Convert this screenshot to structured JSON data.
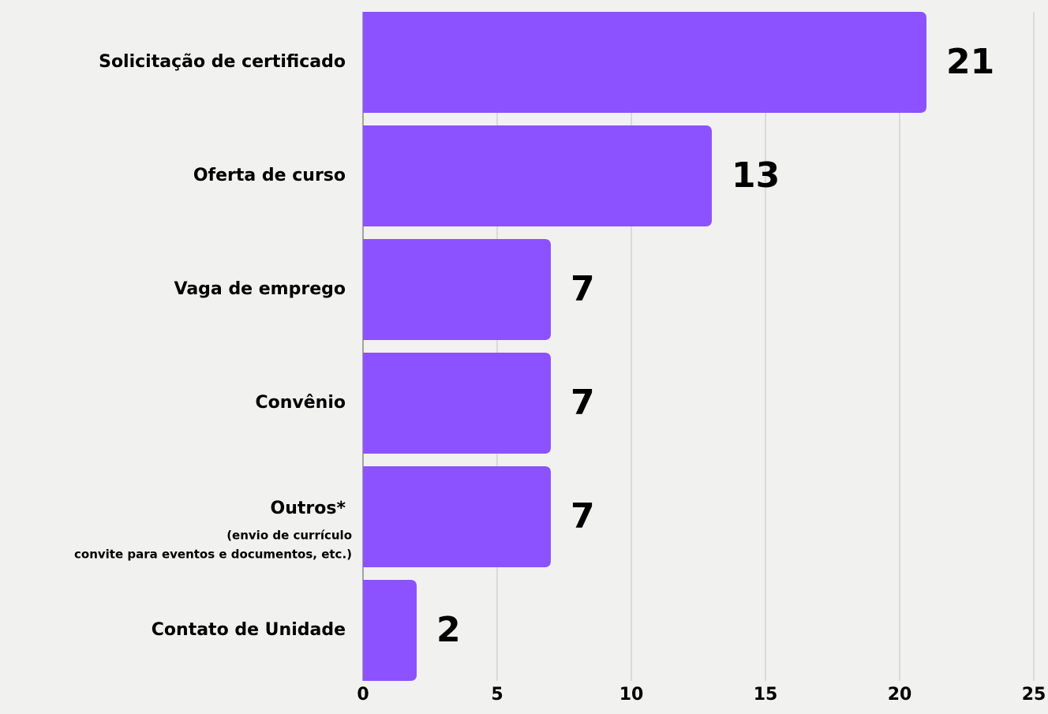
{
  "chart_data": {
    "type": "barh",
    "categories": [
      "Solicitação de certificado",
      "Oferta de curso",
      "Vaga de emprego",
      "Convênio",
      "Outros*",
      "Contato de Unidade"
    ],
    "category_notes": [
      null,
      null,
      null,
      null,
      [
        "(envio de currículo",
        "convite para eventos e documentos, etc.)"
      ],
      null
    ],
    "values": [
      21,
      13,
      7,
      7,
      7,
      2
    ],
    "color": "#8c52ff",
    "xlim": [
      0,
      25
    ],
    "xticks": [
      0,
      5,
      10,
      15,
      20,
      25
    ],
    "grid": true
  }
}
